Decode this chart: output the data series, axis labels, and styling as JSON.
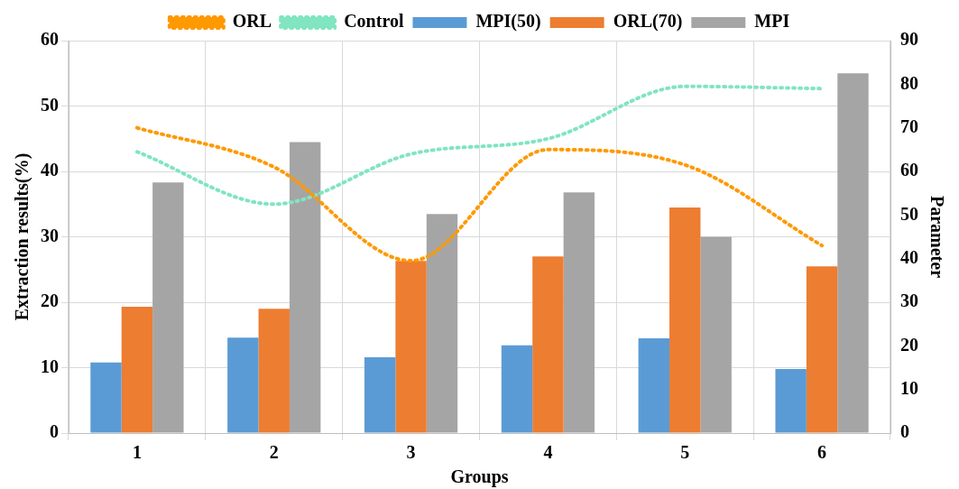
{
  "chart_data": {
    "type": "bar",
    "xlabel": "Groups",
    "ylabel": "Extraction results(%)",
    "y2label": "Parameter",
    "categories": [
      "1",
      "2",
      "3",
      "4",
      "5",
      "6"
    ],
    "series": [
      {
        "name": "MPI(50)",
        "color": "#5b9bd5",
        "values": [
          10.8,
          14.6,
          11.6,
          13.4,
          14.5,
          9.8
        ]
      },
      {
        "name": "ORL(70)",
        "color": "#ed7d31",
        "values": [
          19.3,
          19.0,
          26.3,
          27.0,
          34.5,
          25.5
        ]
      },
      {
        "name": "MPI",
        "color": "#a5a5a5",
        "values": [
          38.3,
          44.5,
          33.5,
          36.8,
          30.0,
          55.0
        ]
      },
      {
        "name": "ORL",
        "type": "line",
        "axis": "y2",
        "color": "#ff9900",
        "line_style": "dotted",
        "values": [
          70,
          61,
          39.5,
          65,
          61.5,
          43
        ]
      },
      {
        "name": "Control",
        "type": "line",
        "axis": "y2",
        "color": "#80e5c0",
        "line_style": "dotted",
        "values": [
          64.5,
          52.5,
          64,
          67.5,
          79.5,
          79
        ]
      }
    ],
    "ylim": [
      0,
      60
    ],
    "yticks": [
      0,
      10,
      20,
      30,
      40,
      50,
      60
    ],
    "y2lim": [
      0,
      90
    ],
    "y2ticks": [
      0,
      10,
      20,
      30,
      40,
      50,
      60,
      70,
      80,
      90
    ],
    "grid": true,
    "legend": "top",
    "marker": "none"
  }
}
